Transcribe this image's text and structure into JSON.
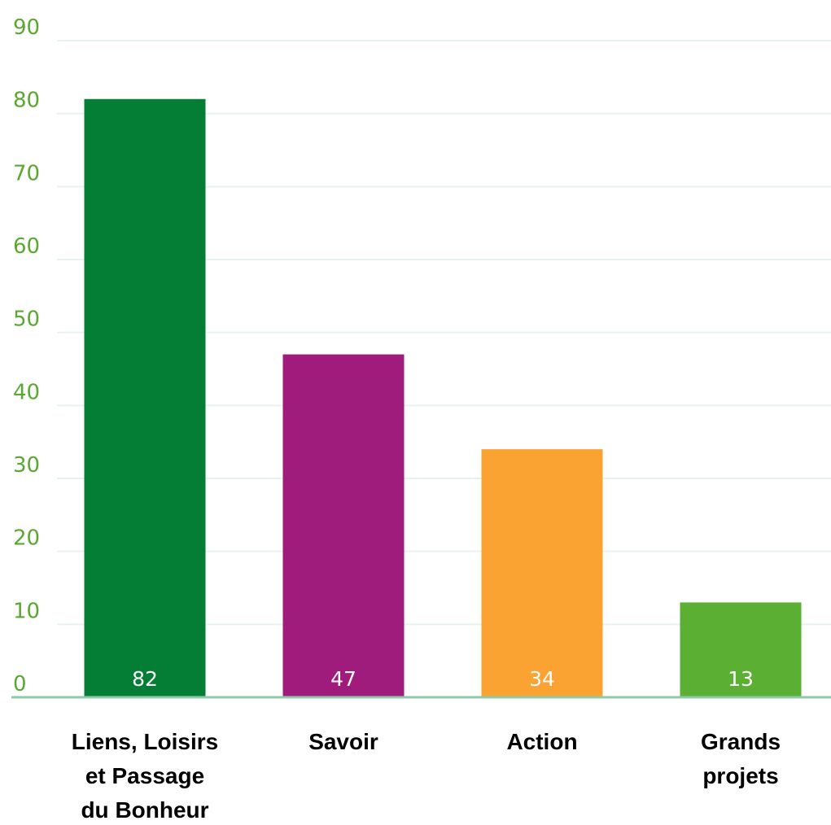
{
  "chart_data": {
    "type": "bar",
    "title": "",
    "xlabel": "",
    "ylabel": "",
    "ylim": [
      0,
      90
    ],
    "yticks": [
      0,
      10,
      20,
      30,
      40,
      50,
      60,
      70,
      80,
      90
    ],
    "grid": true,
    "categories": [
      [
        "Liens, Loisirs",
        "et Passage",
        "du Bonheur"
      ],
      [
        "Savoir"
      ],
      [
        "Action"
      ],
      [
        "Grands",
        "projets"
      ]
    ],
    "values": [
      82,
      47,
      34,
      13
    ],
    "value_labels": [
      "82",
      "47",
      "34",
      "13"
    ],
    "colors": [
      "#047d35",
      "#a01c7c",
      "#fba332",
      "#5bb033"
    ],
    "axis_color": "#8fcaa8",
    "gridline_color": "#e6f2ec",
    "tick_color": "#5aa832"
  }
}
